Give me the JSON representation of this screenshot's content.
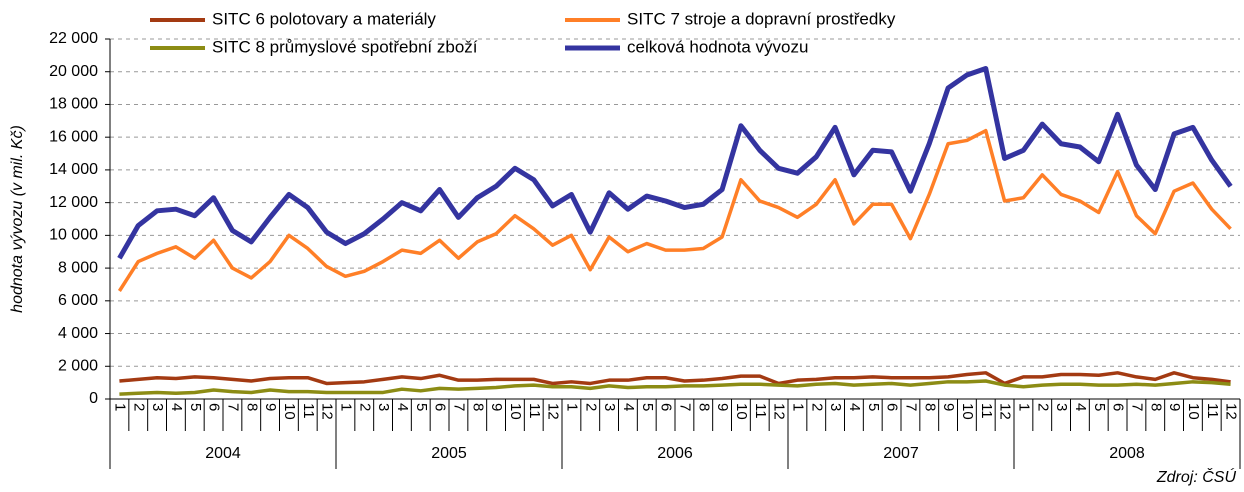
{
  "chart_data": {
    "type": "line",
    "y_label": "hodnota vývozu (v mil. Kč)",
    "annotation": "Zdroj: ČSÚ",
    "categories": [
      "1",
      "2",
      "3",
      "4",
      "5",
      "6",
      "7",
      "8",
      "9",
      "10",
      "11",
      "12",
      "1",
      "2",
      "3",
      "4",
      "5",
      "6",
      "7",
      "8",
      "9",
      "10",
      "11",
      "12",
      "1",
      "2",
      "3",
      "4",
      "5",
      "6",
      "7",
      "8",
      "9",
      "10",
      "11",
      "12",
      "1",
      "2",
      "3",
      "4",
      "5",
      "6",
      "7",
      "8",
      "9",
      "10",
      "11",
      "12",
      "1",
      "2",
      "3",
      "4",
      "5",
      "6",
      "7",
      "8",
      "9",
      "10",
      "11",
      "12"
    ],
    "x_groups": [
      "2004",
      "2005",
      "2006",
      "2007",
      "2008"
    ],
    "ylim": [
      0,
      22000
    ],
    "yticks": [
      0,
      {
        "value": 2000,
        "label": "2 000"
      },
      {
        "value": 4000,
        "label": "4 000"
      },
      {
        "value": 6000,
        "label": "6 000"
      },
      {
        "value": 8000,
        "label": "8 000"
      },
      {
        "value": 10000,
        "label": "10 000"
      },
      {
        "value": 12000,
        "label": "12 000"
      },
      {
        "value": 14000,
        "label": "14 000"
      },
      {
        "value": 16000,
        "label": "16 000"
      },
      {
        "value": 18000,
        "label": "18 000"
      },
      {
        "value": 20000,
        "label": "20 000"
      },
      {
        "value": 22000,
        "label": "22 000"
      }
    ],
    "grid": true,
    "series": [
      {
        "name": "SITC 6 polotovary a materiály",
        "color": "#a33a12",
        "values": [
          1100,
          1200,
          1300,
          1250,
          1350,
          1300,
          1200,
          1100,
          1250,
          1300,
          1300,
          950,
          1000,
          1050,
          1200,
          1350,
          1250,
          1450,
          1150,
          1150,
          1200,
          1200,
          1200,
          950,
          1050,
          950,
          1150,
          1150,
          1300,
          1300,
          1100,
          1150,
          1250,
          1400,
          1400,
          950,
          1150,
          1200,
          1300,
          1300,
          1350,
          1300,
          1300,
          1300,
          1350,
          1500,
          1600,
          950,
          1350,
          1350,
          1500,
          1500,
          1450,
          1600,
          1350,
          1200,
          1600,
          1300,
          1200,
          1050
        ]
      },
      {
        "name": "SITC 7 stroje a dopravní prostředky",
        "color": "#ff7f27",
        "values": [
          6600,
          8400,
          8900,
          9300,
          8600,
          9700,
          8000,
          7400,
          8400,
          10000,
          9200,
          8100,
          7500,
          7800,
          8400,
          9100,
          8900,
          9700,
          8600,
          9600,
          10100,
          11200,
          10400,
          9400,
          10000,
          7900,
          9900,
          9000,
          9500,
          9100,
          9100,
          9200,
          9900,
          13400,
          12100,
          11700,
          11100,
          11900,
          13400,
          10700,
          11900,
          11900,
          9800,
          12500,
          15600,
          15800,
          16400,
          12100,
          12300,
          13700,
          12500,
          12100,
          11400,
          13900,
          11200,
          10100,
          12700,
          13200,
          11600,
          10400
        ]
      },
      {
        "name": "SITC 8 průmyslové spotřební zboží",
        "color": "#8c8c14",
        "values": [
          300,
          350,
          400,
          350,
          400,
          550,
          450,
          400,
          550,
          450,
          450,
          400,
          400,
          400,
          400,
          600,
          500,
          650,
          600,
          650,
          700,
          800,
          850,
          750,
          750,
          650,
          800,
          700,
          750,
          750,
          800,
          800,
          850,
          900,
          900,
          850,
          800,
          900,
          950,
          850,
          900,
          950,
          850,
          950,
          1050,
          1050,
          1100,
          850,
          750,
          850,
          900,
          900,
          850,
          850,
          900,
          850,
          950,
          1050,
          1000,
          900
        ]
      },
      {
        "name": "celková hodnota vývozu",
        "color": "#3434a0",
        "values": [
          8600,
          10600,
          11500,
          11600,
          11200,
          12300,
          10300,
          9600,
          11100,
          12500,
          11700,
          10200,
          9500,
          10100,
          11000,
          12000,
          11500,
          12800,
          11100,
          12300,
          13000,
          14100,
          13400,
          11800,
          12500,
          10200,
          12600,
          11600,
          12400,
          12100,
          11700,
          11900,
          12800,
          16700,
          15200,
          14100,
          13800,
          14800,
          16600,
          13700,
          15200,
          15100,
          12700,
          15600,
          19000,
          19800,
          20200,
          14700,
          15200,
          16800,
          15600,
          15400,
          14500,
          17400,
          14300,
          12800,
          16200,
          16600,
          14600,
          13000
        ]
      }
    ]
  }
}
